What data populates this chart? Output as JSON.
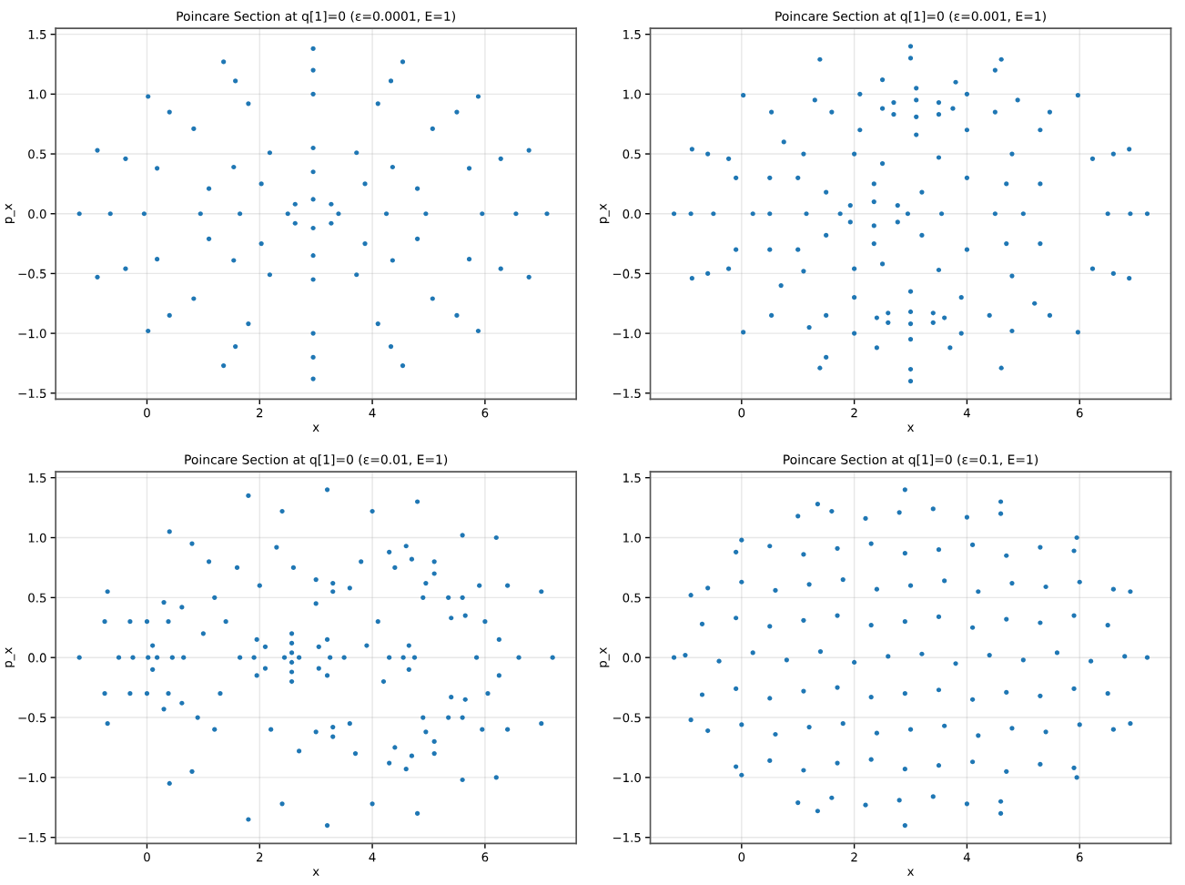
{
  "chart_data": [
    {
      "type": "scatter",
      "title": "Poincare Section at q[1]=0 (ε=0.0001, E=1)",
      "xlabel": "x",
      "ylabel": "p_x",
      "color": "#1f77b4",
      "marker": "circle",
      "grid": true,
      "xlim": [
        -1.62,
        7.62
      ],
      "ylim": [
        -1.55,
        1.55
      ],
      "xticks": [
        0,
        2,
        4,
        6
      ],
      "yticks": [
        {
          "value": -1.5,
          "label": "−1.5"
        },
        {
          "value": -1.0,
          "label": "−1.0"
        },
        {
          "value": -0.5,
          "label": "−0.5"
        },
        {
          "value": 0,
          "label": "0.0"
        },
        {
          "value": 0.5,
          "label": "0.5"
        },
        {
          "value": 1.0,
          "label": "1.0"
        },
        {
          "value": 1.5,
          "label": "1.5"
        }
      ],
      "x": [
        7.1,
        6.78,
        5.88,
        4.54,
        2.95,
        1.36,
        0.02,
        -0.88,
        -1.2,
        -0.88,
        0.02,
        1.36,
        2.95,
        4.54,
        5.88,
        6.78,
        6.55,
        6.28,
        5.5,
        4.33,
        2.95,
        1.57,
        0.4,
        -0.38,
        -0.65,
        -0.38,
        0.4,
        1.57,
        2.95,
        4.33,
        5.5,
        6.28,
        5.95,
        5.72,
        5.07,
        4.1,
        2.95,
        1.8,
        0.83,
        0.18,
        -0.05,
        0.18,
        0.83,
        1.8,
        2.95,
        4.1,
        5.07,
        5.72,
        4.95,
        4.8,
        4.36,
        3.72,
        2.95,
        2.18,
        1.54,
        1.1,
        0.95,
        1.1,
        1.54,
        2.18,
        2.95,
        3.72,
        4.36,
        4.8,
        4.25,
        3.87,
        2.95,
        2.03,
        1.65,
        2.03,
        2.95,
        3.87,
        3.4,
        3.27,
        2.95,
        2.63,
        2.5,
        2.63,
        2.95,
        3.27
      ],
      "values": [
        0,
        0.53,
        0.98,
        1.27,
        1.38,
        1.27,
        0.98,
        0.53,
        0,
        -0.53,
        -0.98,
        -1.27,
        -1.38,
        -1.27,
        -0.98,
        -0.53,
        0,
        0.46,
        0.85,
        1.11,
        1.2,
        1.11,
        0.85,
        0.46,
        0,
        -0.46,
        -0.85,
        -1.11,
        -1.2,
        -1.11,
        -0.85,
        -0.46,
        0,
        0.38,
        0.71,
        0.92,
        1.0,
        0.92,
        0.71,
        0.38,
        0,
        -0.38,
        -0.71,
        -0.92,
        -1.0,
        -0.92,
        -0.71,
        -0.38,
        0,
        0.21,
        0.39,
        0.51,
        0.55,
        0.51,
        0.39,
        0.21,
        0,
        -0.21,
        -0.39,
        -0.51,
        -0.55,
        -0.51,
        -0.39,
        -0.21,
        0,
        0.25,
        0.35,
        0.25,
        0,
        -0.25,
        -0.35,
        -0.25,
        0,
        0.08,
        0.12,
        0.08,
        0,
        -0.08,
        -0.12,
        -0.08
      ]
    },
    {
      "type": "scatter",
      "title": "Poincare Section at q[1]=0 (ε=0.001, E=1)",
      "xlabel": "x",
      "ylabel": "p_x",
      "color": "#1f77b4",
      "marker": "circle",
      "grid": true,
      "xlim": [
        -1.62,
        7.62
      ],
      "ylim": [
        -1.55,
        1.55
      ],
      "xticks": [
        0,
        2,
        4,
        6
      ],
      "yticks": [
        {
          "value": -1.5,
          "label": "−1.5"
        },
        {
          "value": -1.0,
          "label": "−1.0"
        },
        {
          "value": -0.5,
          "label": "−0.5"
        },
        {
          "value": 0,
          "label": "0.0"
        },
        {
          "value": 0.5,
          "label": "0.5"
        },
        {
          "value": 1.0,
          "label": "1.0"
        },
        {
          "value": 1.5,
          "label": "1.5"
        }
      ],
      "x": [
        7.2,
        6.88,
        5.97,
        4.61,
        3.0,
        1.39,
        0.03,
        -0.88,
        -1.2,
        -0.88,
        0.03,
        1.39,
        3.0,
        4.61,
        5.97,
        6.88,
        0.75,
        1.3,
        2.5,
        3.8,
        4.9,
        5.3,
        4.8,
        3.5,
        2.0,
        1.1,
        4.5,
        4.0,
        3.1,
        2.1,
        1.6,
        2.1,
        3.1,
        4.0,
        3.75,
        3.5,
        3.1,
        2.7,
        2.5,
        2.7,
        3.1,
        3.5,
        3.6,
        3.4,
        3.0,
        2.6,
        2.4,
        2.6,
        3.0,
        3.4,
        4.4,
        3.9,
        3.0,
        2.0,
        1.5,
        2.0,
        3.0,
        3.9,
        0.7,
        1.1,
        2.0,
        3.5,
        4.8,
        5.2,
        4.8,
        3.7,
        2.4,
        1.2,
        2.95,
        2.77,
        2.35,
        1.93,
        1.75,
        1.93,
        2.35,
        2.77,
        3.55,
        3.2,
        2.35,
        1.5,
        1.15,
        1.5,
        2.35,
        3.2,
        4.5,
        4.0,
        2.5,
        1.0,
        0.5,
        1.0,
        2.5,
        4.0,
        0.2,
        5.0,
        0.5,
        0.5,
        4.7,
        4.7,
        5.3,
        5.3,
        -0.1,
        -0.1,
        6.5,
        6.23,
        6.23,
        5.47,
        5.47,
        -0.5,
        -0.23,
        -0.23,
        0.53,
        0.53,
        6.9,
        6.6,
        6.6,
        -0.9,
        -0.6,
        -0.6,
        3.0,
        3.0,
        4.5,
        1.5
      ],
      "values": [
        0,
        0.54,
        0.99,
        1.29,
        1.4,
        1.29,
        0.99,
        0.54,
        0,
        -0.54,
        -0.99,
        -1.29,
        -1.4,
        -1.29,
        -0.99,
        -0.54,
        0.6,
        0.95,
        1.12,
        1.1,
        0.95,
        0.7,
        0.5,
        0.47,
        0.5,
        0.5,
        0.85,
        1.0,
        1.05,
        1.0,
        0.85,
        0.7,
        0.66,
        0.7,
        0.88,
        0.93,
        0.95,
        0.93,
        0.88,
        0.83,
        0.81,
        0.83,
        -0.87,
        -0.83,
        -0.82,
        -0.83,
        -0.87,
        -0.91,
        -0.92,
        -0.91,
        -0.85,
        -0.7,
        -0.65,
        -0.7,
        -0.85,
        -1.0,
        -1.05,
        -1.0,
        -0.6,
        -0.48,
        -0.46,
        -0.47,
        -0.52,
        -0.75,
        -0.98,
        -1.12,
        -1.12,
        -0.95,
        0,
        0.07,
        0.1,
        0.07,
        0,
        -0.07,
        -0.1,
        -0.07,
        0,
        0.18,
        0.25,
        0.18,
        0,
        -0.18,
        -0.25,
        -0.18,
        0,
        0.3,
        0.42,
        0.3,
        0,
        -0.3,
        -0.42,
        -0.3,
        0,
        0,
        0.3,
        -0.3,
        0.25,
        -0.25,
        0.25,
        -0.25,
        0.3,
        -0.3,
        0,
        0.46,
        -0.46,
        0.85,
        -0.85,
        0,
        0.46,
        -0.46,
        0.85,
        -0.85,
        0,
        0.5,
        -0.5,
        0,
        0.5,
        -0.5,
        1.3,
        -1.3,
        1.2,
        -1.2
      ]
    },
    {
      "type": "scatter",
      "title": "Poincare Section at q[1]=0 (ε=0.01, E=1)",
      "xlabel": "x",
      "ylabel": "p_x",
      "color": "#1f77b4",
      "marker": "circle",
      "grid": true,
      "xlim": [
        -1.62,
        7.62
      ],
      "ylim": [
        -1.55,
        1.55
      ],
      "xticks": [
        0,
        2,
        4,
        6
      ],
      "yticks": [
        {
          "value": -1.5,
          "label": "−1.5"
        },
        {
          "value": -1.0,
          "label": "−1.0"
        },
        {
          "value": -0.5,
          "label": "−0.5"
        },
        {
          "value": 0,
          "label": "0.0"
        },
        {
          "value": 0.5,
          "label": "0.5"
        },
        {
          "value": 1.0,
          "label": "1.0"
        },
        {
          "value": 1.5,
          "label": "1.5"
        }
      ],
      "x": [
        2.7,
        2.57,
        2.44,
        2.57,
        3.25,
        3.05,
        2.57,
        2.1,
        1.9,
        2.1,
        2.57,
        3.05,
        3.5,
        3.2,
        2.57,
        1.95,
        1.65,
        1.95,
        2.57,
        3.2,
        0.18,
        0.1,
        0.02,
        0.1,
        0.45,
        0.38,
        0.0,
        -0.25,
        0.0,
        0.38,
        0.65,
        0.62,
        0.3,
        -0.3,
        -0.5,
        -0.3,
        0.3,
        0.62,
        4.3,
        4.6,
        5.1,
        5.6,
        5.65,
        5.4,
        4.9,
        4.4,
        4.7,
        5.1,
        5.35,
        4.95,
        4.3,
        4.6,
        5.1,
        5.6,
        5.65,
        5.4,
        4.9,
        4.4,
        4.7,
        5.1,
        5.35,
        4.95,
        3.0,
        3.3,
        3.6,
        3.3,
        3.0,
        3.3,
        3.6,
        3.3,
        4.55,
        4.65,
        4.75,
        4.65,
        7.2,
        7.0,
        6.2,
        4.8,
        3.2,
        1.8,
        0.4,
        -0.7,
        -1.2,
        -0.7,
        0.4,
        1.8,
        3.2,
        4.8,
        6.2,
        7.0,
        6.6,
        6.4,
        5.6,
        4.0,
        2.4,
        0.8,
        -0.75,
        -0.75,
        0.8,
        2.4,
        4.0,
        5.6,
        6.4,
        5.85,
        6.0,
        6.05,
        6.25,
        6.25,
        5.9,
        5.95,
        1.2,
        1.0,
        1.3,
        1.4,
        2.0,
        2.6,
        3.0,
        4.1,
        4.2,
        3.9,
        1.2,
        2.2,
        2.7,
        1.6,
        4.3,
        0.9,
        1.1,
        3.8,
        3.7,
        2.3
      ],
      "values": [
        0,
        0.04,
        0,
        -0.04,
        0,
        0.09,
        0.12,
        0.09,
        0,
        -0.09,
        -0.12,
        -0.09,
        0,
        0.15,
        0.2,
        0.15,
        0,
        -0.15,
        -0.2,
        -0.15,
        0,
        0.1,
        0,
        -0.1,
        0,
        0.3,
        0.3,
        0,
        -0.3,
        -0.3,
        0,
        0.42,
        0.46,
        0.3,
        0,
        -0.3,
        -0.43,
        -0.38,
        0.88,
        0.93,
        0.8,
        0.5,
        0.35,
        0.33,
        0.5,
        0.75,
        0.82,
        0.7,
        0.5,
        0.62,
        -0.88,
        -0.93,
        -0.8,
        -0.5,
        -0.35,
        -0.33,
        -0.5,
        -0.75,
        -0.82,
        -0.7,
        -0.5,
        -0.62,
        0.65,
        0.62,
        0.58,
        0.55,
        -0.62,
        -0.58,
        -0.55,
        -0.66,
        0,
        0.1,
        0,
        -0.1,
        0,
        0.55,
        1.0,
        1.3,
        1.4,
        1.35,
        1.05,
        0.55,
        0,
        -0.55,
        -1.05,
        -1.35,
        -1.4,
        -1.3,
        -1.0,
        -0.55,
        0,
        0.6,
        1.02,
        1.22,
        1.22,
        0.95,
        0.3,
        -0.3,
        -0.95,
        -1.22,
        -1.22,
        -1.02,
        -0.6,
        0,
        0.3,
        -0.3,
        0.15,
        -0.15,
        0.6,
        -0.6,
        0.5,
        0.2,
        -0.3,
        0.3,
        0.6,
        0.75,
        0.45,
        0.3,
        -0.2,
        0.1,
        -0.6,
        -0.6,
        -0.78,
        0.75,
        0,
        -0.5,
        0.8,
        0.8,
        -0.8,
        0.92
      ]
    },
    {
      "type": "scatter",
      "title": "Poincare Section at q[1]=0 (ε=0.1, E=1)",
      "xlabel": "x",
      "ylabel": "p_x",
      "color": "#1f77b4",
      "marker": "circle",
      "grid": true,
      "xlim": [
        -1.62,
        7.62
      ],
      "ylim": [
        -1.55,
        1.55
      ],
      "xticks": [
        0,
        2,
        4,
        6
      ],
      "yticks": [
        {
          "value": -1.5,
          "label": "−1.5"
        },
        {
          "value": -1.0,
          "label": "−1.0"
        },
        {
          "value": -0.5,
          "label": "−0.5"
        },
        {
          "value": 0,
          "label": "0.0"
        },
        {
          "value": 0.5,
          "label": "0.5"
        },
        {
          "value": 1.0,
          "label": "1.0"
        },
        {
          "value": 1.5,
          "label": "1.5"
        }
      ],
      "x": [
        7.2,
        6.9,
        5.95,
        4.6,
        2.9,
        1.35,
        0.0,
        -0.9,
        -1.2,
        -0.9,
        0.0,
        1.35,
        2.9,
        4.6,
        5.95,
        6.9,
        -1.0,
        -0.4,
        0.2,
        0.8,
        1.4,
        2.0,
        2.6,
        3.2,
        3.8,
        4.4,
        5.0,
        5.6,
        6.2,
        6.8,
        -0.7,
        -0.1,
        0.5,
        1.1,
        1.7,
        2.3,
        2.9,
        3.5,
        4.1,
        4.7,
        5.3,
        5.9,
        6.5,
        -0.7,
        -0.1,
        0.5,
        1.1,
        1.7,
        2.3,
        2.9,
        3.5,
        4.1,
        4.7,
        5.3,
        5.9,
        6.5,
        -0.6,
        0.0,
        0.6,
        1.2,
        1.8,
        2.4,
        3.0,
        3.6,
        4.2,
        4.8,
        5.4,
        6.0,
        6.6,
        -0.6,
        0.0,
        0.6,
        1.2,
        1.8,
        2.4,
        3.0,
        3.6,
        4.2,
        4.8,
        5.4,
        6.0,
        6.6,
        -0.1,
        0.5,
        1.1,
        1.7,
        2.3,
        2.9,
        3.5,
        4.1,
        4.7,
        5.3,
        5.9,
        -0.1,
        0.5,
        1.1,
        1.7,
        2.3,
        2.9,
        3.5,
        4.1,
        4.7,
        5.3,
        5.9,
        1.0,
        1.6,
        2.2,
        2.8,
        3.4,
        4.0,
        4.6,
        1.0,
        1.6,
        2.2,
        2.8,
        3.4,
        4.0,
        4.6
      ],
      "values": [
        0,
        0.55,
        1.0,
        1.3,
        1.4,
        1.28,
        0.98,
        0.52,
        0,
        -0.52,
        -0.98,
        -1.28,
        -1.4,
        -1.3,
        -1.0,
        -0.55,
        0.02,
        -0.03,
        0.04,
        -0.02,
        0.05,
        -0.04,
        0.01,
        0.03,
        -0.05,
        0.02,
        -0.02,
        0.04,
        -0.03,
        0.01,
        0.28,
        0.33,
        0.26,
        0.31,
        0.35,
        0.27,
        0.3,
        0.34,
        0.25,
        0.32,
        0.29,
        0.35,
        0.27,
        -0.31,
        -0.26,
        -0.34,
        -0.28,
        -0.25,
        -0.33,
        -0.3,
        -0.27,
        -0.35,
        -0.29,
        -0.32,
        -0.26,
        -0.3,
        0.58,
        0.63,
        0.56,
        0.61,
        0.65,
        0.57,
        0.6,
        0.64,
        0.55,
        0.62,
        0.59,
        0.63,
        0.57,
        -0.61,
        -0.56,
        -0.64,
        -0.58,
        -0.55,
        -0.63,
        -0.6,
        -0.57,
        -0.65,
        -0.59,
        -0.62,
        -0.56,
        -0.6,
        0.88,
        0.93,
        0.86,
        0.91,
        0.95,
        0.87,
        0.9,
        0.94,
        0.85,
        0.92,
        0.89,
        -0.91,
        -0.86,
        -0.94,
        -0.88,
        -0.85,
        -0.93,
        -0.9,
        -0.87,
        -0.95,
        -0.89,
        -0.92,
        1.18,
        1.22,
        1.16,
        1.21,
        1.24,
        1.17,
        1.2,
        -1.21,
        -1.17,
        -1.23,
        -1.19,
        -1.16,
        -1.22,
        -1.2
      ]
    }
  ]
}
